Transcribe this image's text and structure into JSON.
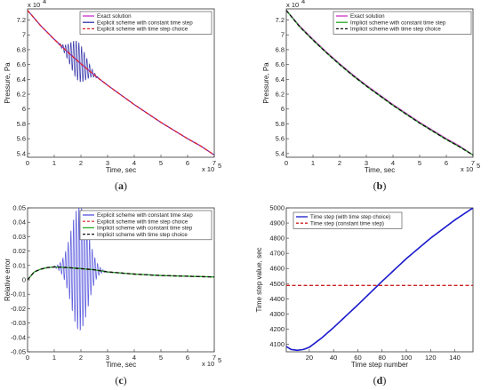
{
  "chart_data": [
    {
      "type": "line",
      "caption_letter": "a",
      "xlabel": "Time, sec",
      "ylabel": "Pressure, Pa",
      "x_exponent": "x 10",
      "x_exp_power": "5",
      "y_exponent": "x 10",
      "y_exp_power": "4",
      "xlim": [
        0,
        7
      ],
      "ylim": [
        5.35,
        7.35
      ],
      "xticks": [
        "0",
        "1",
        "2",
        "3",
        "4",
        "5",
        "6",
        "7"
      ],
      "yticks": [
        "5.4",
        "5.6",
        "5.8",
        "6",
        "6.2",
        "6.4",
        "6.6",
        "6.8",
        "7",
        "7.2"
      ],
      "ytick_values": [
        5.4,
        5.6,
        5.8,
        6.0,
        6.2,
        6.4,
        6.6,
        6.8,
        7.0,
        7.2
      ],
      "legend_position": "top-right",
      "series": [
        {
          "name": "Exact solution",
          "color": "#cc33cc",
          "x": [
            0,
            0.5,
            1,
            1.5,
            2,
            2.5,
            3,
            3.5,
            4,
            4.5,
            5,
            5.5,
            6,
            6.5,
            7
          ],
          "y": [
            7.33,
            7.12,
            6.94,
            6.77,
            6.61,
            6.46,
            6.32,
            6.19,
            6.06,
            5.94,
            5.82,
            5.71,
            5.6,
            5.5,
            5.38
          ]
        },
        {
          "name": "Explicit scheme with constant time step",
          "color": "#3333aa",
          "x": [
            0,
            0.5,
            1,
            1.5,
            2,
            2.5,
            3,
            3.5,
            4,
            4.5,
            5,
            5.5,
            6,
            6.5,
            7
          ],
          "y": [
            7.33,
            7.12,
            6.94,
            6.77,
            6.61,
            6.46,
            6.32,
            6.19,
            6.06,
            5.94,
            5.82,
            5.71,
            5.6,
            5.5,
            5.38
          ],
          "oscillation": {
            "center": 1.9,
            "width": 0.55,
            "amplitude": 0.27,
            "period": 0.1
          }
        },
        {
          "name": "Explicit scheme with time step choice",
          "color": "#dd2222",
          "x": [
            0,
            0.5,
            1,
            1.5,
            2,
            2.5,
            3,
            3.5,
            4,
            4.5,
            5,
            5.5,
            6,
            6.5,
            7
          ],
          "y": [
            7.33,
            7.12,
            6.94,
            6.77,
            6.61,
            6.46,
            6.32,
            6.19,
            6.06,
            5.94,
            5.82,
            5.71,
            5.6,
            5.5,
            5.38
          ]
        }
      ]
    },
    {
      "type": "line",
      "caption_letter": "b",
      "xlabel": "Time, sec",
      "ylabel": "Pressure, Pa",
      "x_exponent": "x 10",
      "x_exp_power": "5",
      "y_exponent": "x 10",
      "y_exp_power": "4",
      "xlim": [
        0,
        7
      ],
      "ylim": [
        5.35,
        7.35
      ],
      "xticks": [
        "0",
        "1",
        "2",
        "3",
        "4",
        "5",
        "6",
        "7"
      ],
      "yticks": [
        "5.4",
        "5.6",
        "5.8",
        "6",
        "6.2",
        "6.4",
        "6.6",
        "6.8",
        "7",
        "7.2"
      ],
      "ytick_values": [
        5.4,
        5.6,
        5.8,
        6.0,
        6.2,
        6.4,
        6.6,
        6.8,
        7.0,
        7.2
      ],
      "legend_position": "top-right",
      "series": [
        {
          "name": "Exact solution",
          "color": "#cc33cc",
          "x": [
            0,
            0.5,
            1,
            1.5,
            2,
            2.5,
            3,
            3.5,
            4,
            4.5,
            5,
            5.5,
            6,
            6.5,
            7
          ],
          "y": [
            7.33,
            7.12,
            6.94,
            6.77,
            6.61,
            6.46,
            6.32,
            6.19,
            6.06,
            5.94,
            5.82,
            5.71,
            5.6,
            5.5,
            5.38
          ]
        },
        {
          "name": "Implicit scheme with constant time step",
          "color": "#22aa22",
          "x": [
            0,
            0.5,
            1,
            1.5,
            2,
            2.5,
            3,
            3.5,
            4,
            4.5,
            5,
            5.5,
            6,
            6.5,
            7
          ],
          "y": [
            7.33,
            7.11,
            6.93,
            6.76,
            6.6,
            6.45,
            6.31,
            6.18,
            6.05,
            5.93,
            5.81,
            5.7,
            5.59,
            5.49,
            5.38
          ]
        },
        {
          "name": "Implicit scheme with time step choice",
          "color": "#111111",
          "x": [
            0,
            0.5,
            1,
            1.5,
            2,
            2.5,
            3,
            3.5,
            4,
            4.5,
            5,
            5.5,
            6,
            6.5,
            7
          ],
          "y": [
            7.33,
            7.11,
            6.93,
            6.76,
            6.6,
            6.45,
            6.31,
            6.18,
            6.05,
            5.93,
            5.81,
            5.7,
            5.59,
            5.49,
            5.38
          ]
        }
      ]
    },
    {
      "type": "line",
      "caption_letter": "c",
      "xlabel": "Time, sec",
      "ylabel": "Relative error",
      "x_exponent": "x 10",
      "x_exp_power": "5",
      "xlim": [
        0,
        7
      ],
      "ylim": [
        -0.05,
        0.05
      ],
      "xticks": [
        "0",
        "1",
        "2",
        "3",
        "4",
        "5",
        "6",
        "7"
      ],
      "yticks": [
        "-0.05",
        "-0.04",
        "-0.03",
        "-0.02",
        "-0.01",
        "0",
        "0.01",
        "0.02",
        "0.03",
        "0.04",
        "0.05"
      ],
      "ytick_values": [
        -0.05,
        -0.04,
        -0.03,
        -0.02,
        -0.01,
        0,
        0.01,
        0.02,
        0.03,
        0.04,
        0.05
      ],
      "legend_position": "top-right",
      "series": [
        {
          "name": "Explicit scheme with constant time step",
          "color": "#5555dd",
          "x": [
            0,
            0.25,
            0.5,
            0.75,
            1,
            1.5,
            2,
            2.5,
            3,
            4,
            5,
            6,
            7
          ],
          "y": [
            0,
            0.0055,
            0.0075,
            0.0085,
            0.009,
            0.0085,
            0.0078,
            0.007,
            0.0055,
            0.004,
            0.003,
            0.0025,
            0.002
          ],
          "oscillation": {
            "center": 1.95,
            "width": 0.6,
            "amplitude": 0.045,
            "period": 0.1
          }
        },
        {
          "name": "Explicit scheme with time step choice",
          "color": "#dd4444",
          "x": [
            0,
            0.25,
            0.5,
            0.75,
            1,
            1.5,
            2,
            2.5,
            3,
            4,
            5,
            6,
            7
          ],
          "y": [
            0,
            0.0055,
            0.0075,
            0.0085,
            0.009,
            0.0085,
            0.0078,
            0.007,
            0.0055,
            0.004,
            0.003,
            0.0025,
            0.002
          ]
        },
        {
          "name": "Implicit scheme with constant time step",
          "color": "#22aa22",
          "x": [
            0,
            0.25,
            0.5,
            0.75,
            1,
            1.5,
            2,
            2.5,
            3,
            4,
            5,
            6,
            7
          ],
          "y": [
            0,
            0.0055,
            0.0075,
            0.0085,
            0.009,
            0.0085,
            0.0078,
            0.007,
            0.0055,
            0.004,
            0.003,
            0.0025,
            0.002
          ]
        },
        {
          "name": "Implicit scheme with time step choice",
          "color": "#111111",
          "x": [
            0,
            0.25,
            0.5,
            0.75,
            1,
            1.5,
            2,
            2.5,
            3,
            4,
            5,
            6,
            7
          ],
          "y": [
            0,
            0.0055,
            0.0075,
            0.0085,
            0.009,
            0.0085,
            0.0078,
            0.007,
            0.0055,
            0.004,
            0.003,
            0.0025,
            0.002
          ]
        }
      ]
    },
    {
      "type": "line",
      "caption_letter": "d",
      "xlabel": "Time step number",
      "ylabel": "Time step value, sec",
      "xlim": [
        1,
        155
      ],
      "ylim": [
        4050,
        5000
      ],
      "xticks": [
        "20",
        "40",
        "60",
        "80",
        "100",
        "120",
        "140"
      ],
      "xtick_values": [
        20,
        40,
        60,
        80,
        100,
        120,
        140
      ],
      "yticks": [
        "4100",
        "4200",
        "4300",
        "4400",
        "4500",
        "4600",
        "4700",
        "4800",
        "4900",
        "5000"
      ],
      "ytick_values": [
        4100,
        4200,
        4300,
        4400,
        4500,
        4600,
        4700,
        4800,
        4900,
        5000
      ],
      "legend_position": "top-left",
      "series": [
        {
          "name": "Time step (with time step choice)",
          "color": "#1a1acc",
          "x": [
            1,
            5,
            10,
            15,
            20,
            30,
            40,
            60,
            80,
            100,
            120,
            140,
            155
          ],
          "y": [
            4085,
            4065,
            4060,
            4065,
            4080,
            4140,
            4210,
            4360,
            4515,
            4665,
            4800,
            4920,
            5000
          ]
        },
        {
          "name": "Time step (constant time step)",
          "color": "#cc2222",
          "x": [
            1,
            155
          ],
          "y": [
            4488,
            4488
          ]
        }
      ]
    }
  ]
}
